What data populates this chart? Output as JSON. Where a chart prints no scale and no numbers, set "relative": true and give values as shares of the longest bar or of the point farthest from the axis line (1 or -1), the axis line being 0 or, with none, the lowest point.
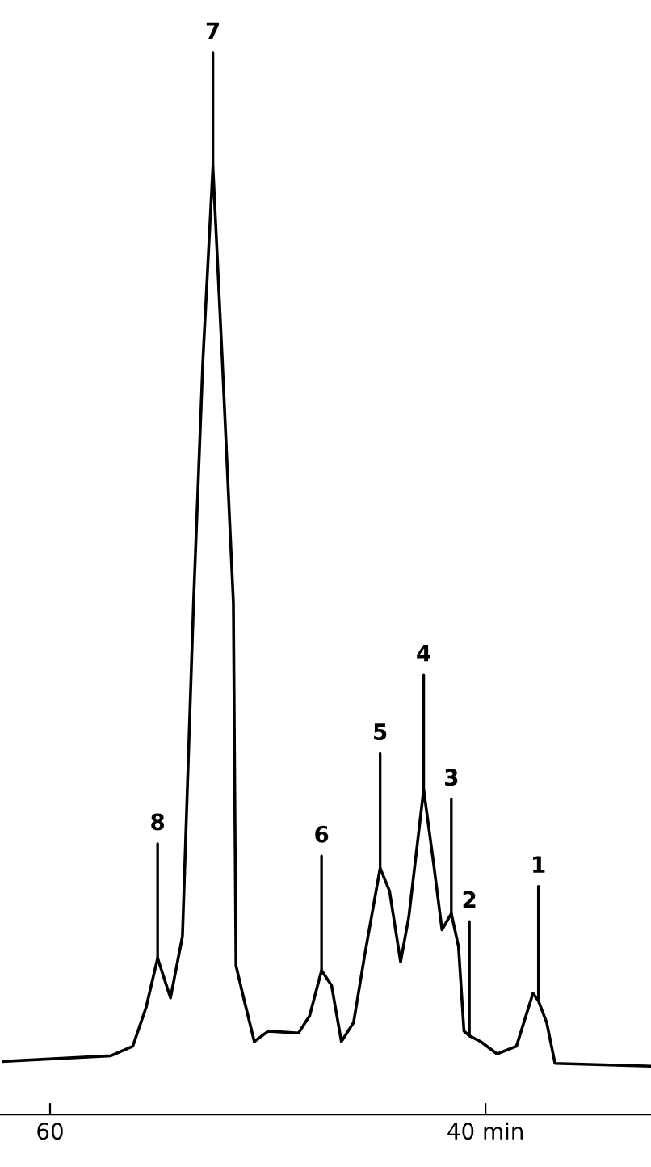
{
  "chart_data": {
    "type": "line",
    "relative": true,
    "tick_labels": "x",
    "xlim": [
      62.3,
      32.4
    ],
    "xticks": [
      60,
      {
        "value": 40,
        "label": "40 min"
      }
    ],
    "series": [
      {
        "color": "#000000",
        "x": [
          62.15,
          57.21,
          56.2,
          55.59,
          55.06,
          54.47,
          53.92,
          53.41,
          52.98,
          52.52,
          52.09,
          51.58,
          51.46,
          51.13,
          50.62,
          49.98,
          48.59,
          48.08,
          47.53,
          47.07,
          46.62,
          46.06,
          45.55,
          44.84,
          44.41,
          43.9,
          43.52,
          42.84,
          42.38,
          42.0,
          41.57,
          41.24,
          40.99,
          40.74,
          40.23,
          39.47,
          38.58,
          37.82,
          37.57,
          37.19,
          36.81,
          32.4
        ],
        "values": [
          0.056,
          0.062,
          0.072,
          0.113,
          0.165,
          0.123,
          0.188,
          0.54,
          0.796,
          1.0,
          0.796,
          0.54,
          0.157,
          0.125,
          0.077,
          0.088,
          0.086,
          0.104,
          0.152,
          0.136,
          0.077,
          0.097,
          0.168,
          0.26,
          0.236,
          0.161,
          0.209,
          0.343,
          0.264,
          0.195,
          0.212,
          0.177,
          0.088,
          0.083,
          0.077,
          0.064,
          0.072,
          0.128,
          0.12,
          0.097,
          0.054,
          0.051
        ]
      }
    ],
    "annotations": [
      {
        "text": "8",
        "x": 55.06,
        "y": 0.165
      },
      {
        "text": "7",
        "x": 52.52,
        "y": 1.0
      },
      {
        "text": "6",
        "x": 47.53,
        "y": 0.152
      },
      {
        "text": "5",
        "x": 44.84,
        "y": 0.26
      },
      {
        "text": "4",
        "x": 42.84,
        "y": 0.343
      },
      {
        "text": "3",
        "x": 41.57,
        "y": 0.212
      },
      {
        "text": "2",
        "x": 40.74,
        "y": 0.083
      },
      {
        "text": "1",
        "x": 37.57,
        "y": 0.12
      }
    ]
  }
}
